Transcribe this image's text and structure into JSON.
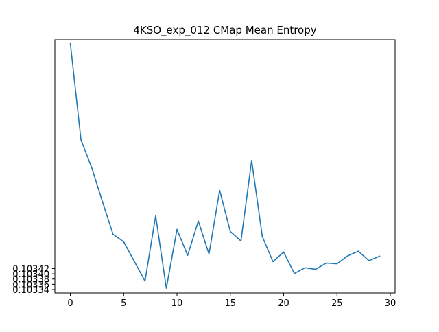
{
  "chart_data": {
    "type": "line",
    "title": "4KSO_exp_012 CMap Mean Entropy",
    "xlabel": "",
    "ylabel": "",
    "xlim": [
      -1.45,
      30.45
    ],
    "ylim": [
      0.103327,
      0.104292
    ],
    "x_ticks": [
      0,
      5,
      10,
      15,
      20,
      25,
      30
    ],
    "x_tick_labels": [
      "0",
      "5",
      "10",
      "15",
      "20",
      "25",
      "30"
    ],
    "y_ticks": [
      0.10334,
      0.10336,
      0.10338,
      0.1034,
      0.10342
    ],
    "y_tick_labels": [
      "0.10334",
      "0.10336",
      "0.10338",
      "0.10340",
      "0.10342"
    ],
    "grid": false,
    "legend": "none",
    "series": [
      {
        "color": "#1f77b4",
        "x": [
          0,
          1,
          2,
          3,
          4,
          5,
          6,
          7,
          8,
          9,
          10,
          11,
          12,
          13,
          14,
          15,
          16,
          17,
          18,
          19,
          20,
          21,
          22,
          23,
          24,
          25,
          26,
          27,
          28,
          29
        ],
        "values": [
          0.104278,
          0.10391,
          0.103805,
          0.103676,
          0.103551,
          0.103522,
          0.103447,
          0.103372,
          0.103621,
          0.103345,
          0.103569,
          0.10347,
          0.103601,
          0.103475,
          0.103718,
          0.103561,
          0.103525,
          0.103832,
          0.103542,
          0.103446,
          0.103483,
          0.103401,
          0.103423,
          0.103417,
          0.103441,
          0.103438,
          0.103468,
          0.103486,
          0.10345,
          0.103467
        ]
      }
    ]
  }
}
